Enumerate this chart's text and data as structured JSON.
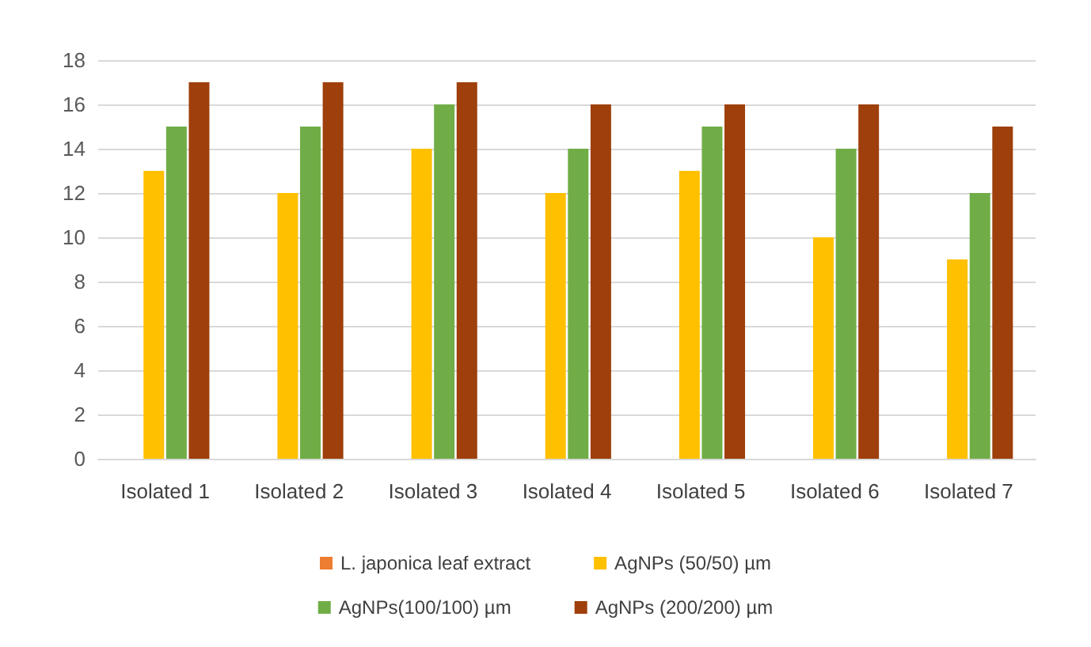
{
  "chart_data": {
    "type": "bar",
    "categories": [
      "Isolated 1",
      "Isolated 2",
      "Isolated 3",
      "Isolated 4",
      "Isolated 5",
      "Isolated 6",
      "Isolated 7"
    ],
    "series": [
      {
        "name": "L. japonica leaf extract",
        "color": "#ed7d31",
        "values": [
          0,
          0,
          0,
          0,
          0,
          0,
          0
        ]
      },
      {
        "name": "AgNPs (50/50) µm",
        "color": "#ffc000",
        "values": [
          13,
          12,
          14,
          12,
          13,
          10,
          9
        ]
      },
      {
        "name": "AgNPs(100/100) µm",
        "color": "#70ad47",
        "values": [
          15,
          15,
          16,
          14,
          15,
          14,
          12
        ]
      },
      {
        "name": "AgNPs (200/200) µm",
        "color": "#9e3f0c",
        "values": [
          17,
          17,
          17,
          16,
          16,
          16,
          15
        ]
      }
    ],
    "ylim": [
      0,
      18
    ],
    "yticks": [
      0,
      2,
      4,
      6,
      8,
      10,
      12,
      14,
      16,
      18
    ],
    "grid": "y",
    "legend": "bottom"
  }
}
